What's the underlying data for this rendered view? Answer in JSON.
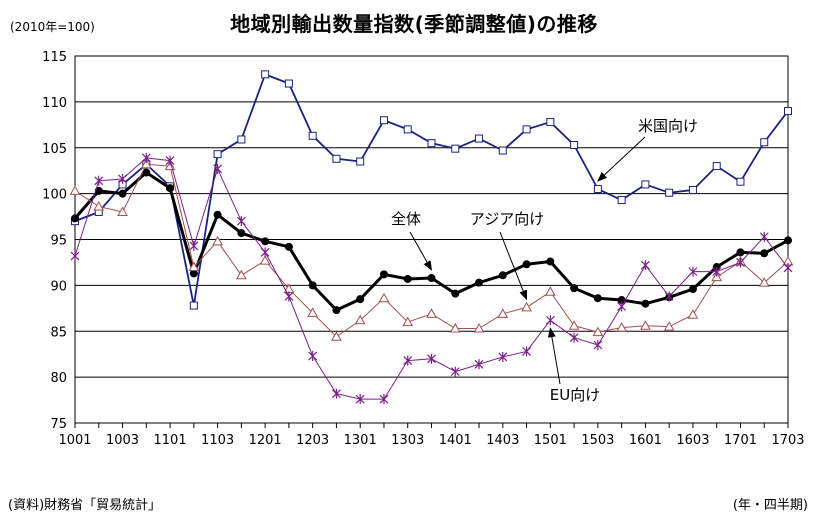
{
  "header": {
    "base_note": "(2010年=100)",
    "title": "地域別輸出数量指数(季節調整値)の推移"
  },
  "footer": {
    "source": "(資料)財務省「貿易統計」",
    "unit": "(年・四半期)"
  },
  "chart_data": {
    "type": "line",
    "title": "地域別輸出数量指数(季節調整値)の推移",
    "xlabel": "(年・四半期)",
    "ylabel": "",
    "ylim": [
      75,
      115
    ],
    "yticks": [
      75,
      80,
      85,
      90,
      95,
      100,
      105,
      110,
      115
    ],
    "grid": true,
    "categories": [
      "1001",
      "1002",
      "1003",
      "1004",
      "1101",
      "1102",
      "1103",
      "1104",
      "1201",
      "1202",
      "1203",
      "1204",
      "1301",
      "1302",
      "1303",
      "1304",
      "1401",
      "1402",
      "1403",
      "1404",
      "1501",
      "1502",
      "1503",
      "1504",
      "1601",
      "1602",
      "1603",
      "1604",
      "1701",
      "1702",
      "1703"
    ],
    "xtick_labels": [
      "1001",
      "1003",
      "1101",
      "1103",
      "1201",
      "1203",
      "1301",
      "1303",
      "1401",
      "1403",
      "1501",
      "1503",
      "1601",
      "1603",
      "1701",
      "1703"
    ],
    "series": [
      {
        "name": "米国向け",
        "color": "#1a237e",
        "marker": "square",
        "values": [
          97.0,
          98.0,
          101.0,
          103.2,
          100.8,
          87.8,
          104.3,
          105.9,
          113.0,
          112.0,
          106.3,
          103.8,
          103.5,
          108.0,
          107.0,
          105.5,
          104.9,
          106.0,
          104.7,
          107.0,
          107.8,
          105.3,
          100.5,
          99.3,
          101.0,
          100.1,
          100.4,
          103.0,
          101.3,
          105.6,
          109.0
        ]
      },
      {
        "name": "全体",
        "color": "#000000",
        "marker": "circle",
        "values": [
          97.3,
          100.3,
          100.0,
          102.3,
          100.6,
          91.3,
          97.7,
          95.7,
          94.8,
          94.2,
          90.0,
          87.3,
          88.5,
          91.2,
          90.7,
          90.8,
          89.1,
          90.3,
          91.1,
          92.3,
          92.6,
          89.7,
          88.6,
          88.4,
          88.0,
          88.7,
          89.6,
          92.0,
          93.6,
          93.5,
          94.9
        ]
      },
      {
        "name": "アジア向け",
        "color": "#a05050",
        "marker": "triangle",
        "values": [
          100.3,
          98.6,
          98.0,
          103.2,
          103.0,
          92.0,
          94.8,
          91.1,
          92.7,
          89.6,
          87.0,
          84.4,
          86.2,
          88.6,
          86.0,
          86.9,
          85.3,
          85.3,
          86.9,
          87.6,
          89.3,
          85.6,
          84.9,
          85.4,
          85.6,
          85.5,
          86.8,
          90.9,
          92.6,
          90.3,
          92.6
        ]
      },
      {
        "name": "EU向け",
        "color": "#7b1f8a",
        "marker": "star",
        "values": [
          93.2,
          101.4,
          101.6,
          103.9,
          103.6,
          94.3,
          102.7,
          97.0,
          93.6,
          88.8,
          82.3,
          78.2,
          77.6,
          77.6,
          81.8,
          82.0,
          80.6,
          81.4,
          82.2,
          82.8,
          86.2,
          84.3,
          83.5,
          87.7,
          92.2,
          88.8,
          91.5,
          91.5,
          92.5,
          95.3,
          91.9
        ]
      }
    ],
    "annotations": [
      {
        "text": "米国向け",
        "target": "米国向け"
      },
      {
        "text": "全体",
        "target": "全体"
      },
      {
        "text": "アジア向け",
        "target": "アジア向け"
      },
      {
        "text": "EU向け",
        "target": "EU向け"
      }
    ]
  }
}
